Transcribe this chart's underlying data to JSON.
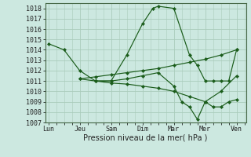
{
  "background_color": "#cce8e0",
  "grid_color": "#aaccbb",
  "line_color": "#1a5c1a",
  "xlabel": "Pression niveau de la mer( hPa )",
  "xlabel_fontsize": 7,
  "ylim": [
    1007,
    1018.5
  ],
  "yticks": [
    1007,
    1008,
    1009,
    1010,
    1011,
    1012,
    1013,
    1014,
    1015,
    1016,
    1017,
    1018
  ],
  "xtick_labels": [
    "Lun",
    "Jeu",
    "Sam",
    "Dim",
    "Mar",
    "Mer",
    "Ven"
  ],
  "xtick_positions": [
    0,
    1,
    2,
    3,
    4,
    5,
    6
  ],
  "xlim": [
    -0.1,
    6.3
  ],
  "series": [
    {
      "x": [
        0,
        0.5,
        1,
        1.5,
        2,
        2.5,
        3,
        3.33,
        3.5,
        4,
        4.5,
        4.75,
        5,
        5.25,
        5.5,
        5.75,
        6.0
      ],
      "y": [
        1014.6,
        1014.0,
        1012.0,
        1011.0,
        1011.0,
        1013.5,
        1016.5,
        1018.0,
        1018.2,
        1018.0,
        1013.5,
        1012.5,
        1011.0,
        1011.0,
        1011.0,
        1011.0,
        1014.0
      ]
    },
    {
      "x": [
        1,
        1.5,
        2,
        2.5,
        3,
        3.5,
        4,
        4.5,
        5,
        5.5,
        6.0
      ],
      "y": [
        1011.2,
        1011.4,
        1011.6,
        1011.8,
        1012.0,
        1012.2,
        1012.5,
        1012.8,
        1013.1,
        1013.5,
        1014.0
      ]
    },
    {
      "x": [
        1,
        1.5,
        2,
        2.5,
        3,
        3.5,
        4,
        4.5,
        5,
        5.5,
        6.0
      ],
      "y": [
        1011.2,
        1011.0,
        1010.8,
        1010.7,
        1010.5,
        1010.3,
        1010.0,
        1009.5,
        1009.0,
        1010.0,
        1011.5
      ]
    },
    {
      "x": [
        1.5,
        2,
        2.5,
        3,
        3.5,
        4,
        4.25,
        4.5,
        4.75,
        5,
        5.25,
        5.5,
        5.75,
        6.0
      ],
      "y": [
        1011.0,
        1011.0,
        1011.2,
        1011.5,
        1011.8,
        1010.5,
        1009.0,
        1008.5,
        1007.3,
        1009.0,
        1008.5,
        1008.5,
        1009.0,
        1009.2
      ]
    }
  ]
}
